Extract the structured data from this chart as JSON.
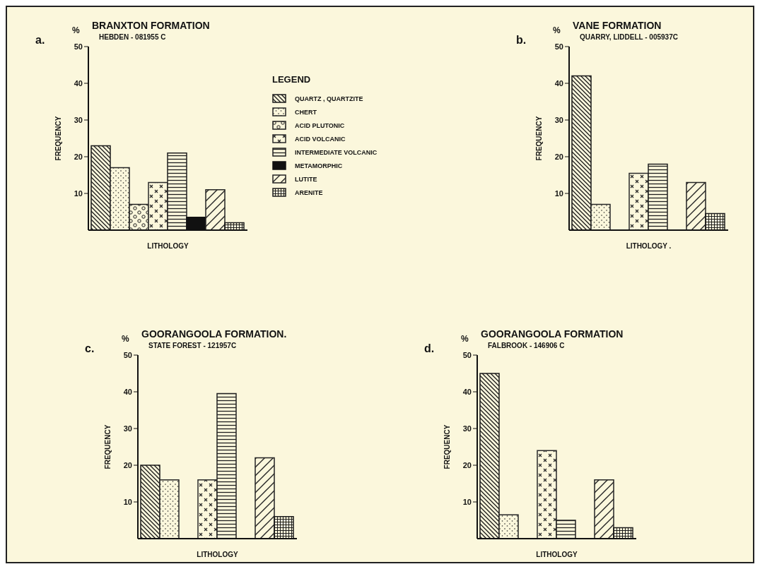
{
  "chart_data": [
    {
      "type": "bar",
      "title": "BRANXTON FORMATION",
      "subtitle": "HEBDEN - 081955 C",
      "xlabel": "LITHOLOGY",
      "ylabel": "FREQUENCY",
      "annotations": [
        "a.",
        "%"
      ],
      "legend_title": "LEGEND",
      "legend": "right",
      "categories": [
        null
      ],
      "ylim": [
        0,
        50
      ],
      "yticks": [
        10,
        20,
        30,
        40,
        50
      ],
      "tick_labels": "y",
      "grid": false,
      "series": [
        {
          "name": "QUARTZ , QUARTZITE",
          "color": "#1a1a1a",
          "values": [
            23
          ]
        },
        {
          "name": "CHERT",
          "color": "#262626",
          "values": [
            17
          ]
        },
        {
          "name": "ACID PLUTONIC",
          "color": "#1f1f1f",
          "values": [
            7
          ]
        },
        {
          "name": "ACID VOLCANIC",
          "color": "#2a2a2a",
          "values": [
            13
          ]
        },
        {
          "name": "INTERMEDIATE VOLCANIC",
          "color": "#202020",
          "values": [
            21
          ]
        },
        {
          "name": "METAMORPHIC",
          "color": "#111111",
          "values": [
            3.5
          ]
        },
        {
          "name": "LUTITE",
          "color": "#242424",
          "values": [
            11
          ]
        },
        {
          "name": "ARENITE",
          "color": "#1c1c1c",
          "values": [
            2
          ]
        }
      ]
    },
    {
      "type": "bar",
      "title": "VANE FORMATION",
      "subtitle": "QUARRY, LIDDELL - 005937C",
      "xlabel": "LITHOLOGY .",
      "ylabel": "FREQUENCY",
      "annotations": [
        "b.",
        "%"
      ],
      "categories": [
        null
      ],
      "ylim": [
        0,
        50
      ],
      "yticks": [
        10,
        20,
        30,
        40,
        50
      ],
      "tick_labels": "y",
      "grid": false,
      "series": [
        {
          "color": "#1a1a1a",
          "values": [
            42
          ]
        },
        {
          "color": "#262626",
          "values": [
            7
          ]
        },
        {
          "color": "#1f1f1f",
          "values": [
            null
          ]
        },
        {
          "color": "#2a2a2a",
          "values": [
            15.5
          ]
        },
        {
          "color": "#202020",
          "values": [
            18
          ]
        },
        {
          "color": "#111111",
          "values": [
            null
          ]
        },
        {
          "color": "#242424",
          "values": [
            13
          ]
        },
        {
          "color": "#1c1c1c",
          "values": [
            4.5
          ]
        }
      ]
    },
    {
      "type": "bar",
      "title": "GOORANGOOLA FORMATION.",
      "subtitle": "STATE FOREST - 121957C",
      "xlabel": "LITHOLOGY",
      "ylabel": "FREQUENCY",
      "annotations": [
        "c.",
        "%"
      ],
      "categories": [
        null
      ],
      "ylim": [
        0,
        50
      ],
      "yticks": [
        10,
        20,
        30,
        40,
        50
      ],
      "tick_labels": "y",
      "grid": false,
      "series": [
        {
          "color": "#1a1a1a",
          "values": [
            20
          ]
        },
        {
          "color": "#262626",
          "values": [
            16
          ]
        },
        {
          "color": "#1f1f1f",
          "values": [
            null
          ]
        },
        {
          "color": "#2a2a2a",
          "values": [
            16
          ]
        },
        {
          "color": "#202020",
          "values": [
            39.5
          ]
        },
        {
          "color": "#111111",
          "values": [
            null
          ]
        },
        {
          "color": "#242424",
          "values": [
            22
          ]
        },
        {
          "color": "#1c1c1c",
          "values": [
            6
          ]
        }
      ]
    },
    {
      "type": "bar",
      "title": "GOORANGOOLA FORMATION",
      "subtitle": "FALBROOK - 146906 C",
      "xlabel": "LITHOLOGY",
      "ylabel": "FREQUENCY",
      "annotations": [
        "d.",
        "%"
      ],
      "categories": [
        null
      ],
      "ylim": [
        0,
        50
      ],
      "yticks": [
        10,
        20,
        30,
        40,
        50
      ],
      "tick_labels": "y",
      "grid": false,
      "series": [
        {
          "color": "#1a1a1a",
          "values": [
            45
          ]
        },
        {
          "color": "#262626",
          "values": [
            6.5
          ]
        },
        {
          "color": "#1f1f1f",
          "values": [
            null
          ]
        },
        {
          "color": "#2a2a2a",
          "values": [
            24
          ]
        },
        {
          "color": "#202020",
          "values": [
            5
          ]
        },
        {
          "color": "#111111",
          "values": [
            null
          ]
        },
        {
          "color": "#242424",
          "values": [
            16
          ]
        },
        {
          "color": "#1c1c1c",
          "values": [
            3
          ]
        }
      ]
    }
  ]
}
